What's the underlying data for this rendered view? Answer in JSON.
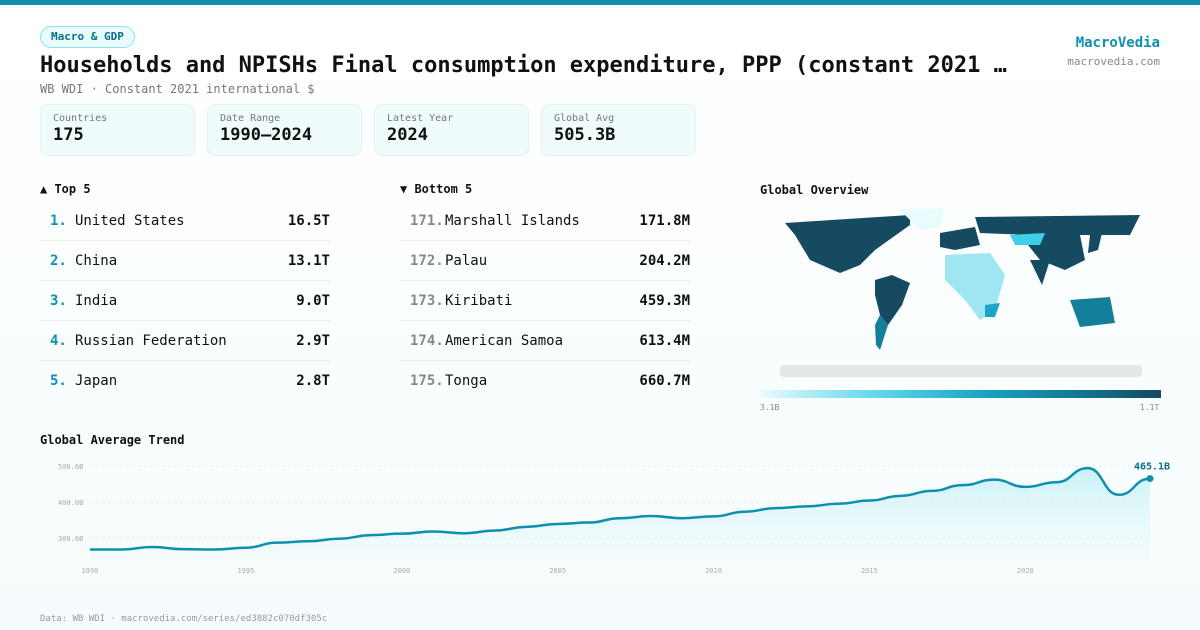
{
  "header": {
    "category": "Macro & GDP",
    "title": "Households and NPISHs Final consumption expenditure, PPP (constant 2021 …",
    "subtitle": "WB WDI · Constant 2021 international $",
    "brand": "MacroVedia",
    "brand_url": "macrovedia.com"
  },
  "stats": [
    {
      "label": "Countries",
      "value": "175"
    },
    {
      "label": "Date Range",
      "value": "1990–2024"
    },
    {
      "label": "Latest Year",
      "value": "2024"
    },
    {
      "label": "Global Avg",
      "value": "505.3B"
    }
  ],
  "top5": {
    "title": "▲ Top 5",
    "items": [
      {
        "rank": "1.",
        "name": "United States",
        "value": "16.5T"
      },
      {
        "rank": "2.",
        "name": "China",
        "value": "13.1T"
      },
      {
        "rank": "3.",
        "name": "India",
        "value": "9.0T"
      },
      {
        "rank": "4.",
        "name": "Russian Federation",
        "value": "2.9T"
      },
      {
        "rank": "5.",
        "name": "Japan",
        "value": "2.8T"
      }
    ]
  },
  "bottom5": {
    "title": "▼ Bottom 5",
    "items": [
      {
        "rank": "171.",
        "name": "Marshall Islands",
        "value": "171.8M"
      },
      {
        "rank": "172.",
        "name": "Palau",
        "value": "204.2M"
      },
      {
        "rank": "173.",
        "name": "Kiribati",
        "value": "459.3M"
      },
      {
        "rank": "174.",
        "name": "American Samoa",
        "value": "613.4M"
      },
      {
        "rank": "175.",
        "name": "Tonga",
        "value": "660.7M"
      }
    ]
  },
  "map": {
    "title": "Global Overview",
    "legend_min": "3.1B",
    "legend_max": "1.1T",
    "colors": {
      "low": "#e8fbfd",
      "mid": "#1aa6c4",
      "high": "#154a60",
      "nodata": "#e4e6e8"
    }
  },
  "chart_data": {
    "type": "area",
    "title": "Global Average Trend",
    "x": [
      1990,
      1991,
      1992,
      1993,
      1994,
      1995,
      1996,
      1997,
      1998,
      1999,
      2000,
      2001,
      2002,
      2003,
      2004,
      2005,
      2006,
      2007,
      2008,
      2009,
      2010,
      2011,
      2012,
      2013,
      2014,
      2015,
      2016,
      2017,
      2018,
      2019,
      2020,
      2021,
      2022,
      2023,
      2024
    ],
    "values": [
      268,
      268,
      275,
      269,
      268,
      273,
      287,
      291,
      298,
      308,
      312,
      318,
      313,
      321,
      331,
      339,
      343,
      355,
      361,
      355,
      360,
      373,
      383,
      388,
      395,
      404,
      417,
      431,
      447,
      462,
      442,
      455,
      494,
      420,
      465.1
    ],
    "unit": "B",
    "yticks": [
      "300.0B",
      "400.0B",
      "500.0B"
    ],
    "ytick_values": [
      300,
      400,
      500
    ],
    "xticks": [
      "1990",
      "1995",
      "2000",
      "2005",
      "2010",
      "2015",
      "2020"
    ],
    "xtick_values": [
      1990,
      1995,
      2000,
      2005,
      2010,
      2015,
      2020
    ],
    "last_label": "465.1B",
    "ylim": [
      230,
      520
    ],
    "xlim": [
      1990,
      2024
    ],
    "grid": true,
    "color": "#0e8fb0"
  },
  "footer": "Data: WB WDI · macrovedia.com/series/ed3882c070df305c"
}
